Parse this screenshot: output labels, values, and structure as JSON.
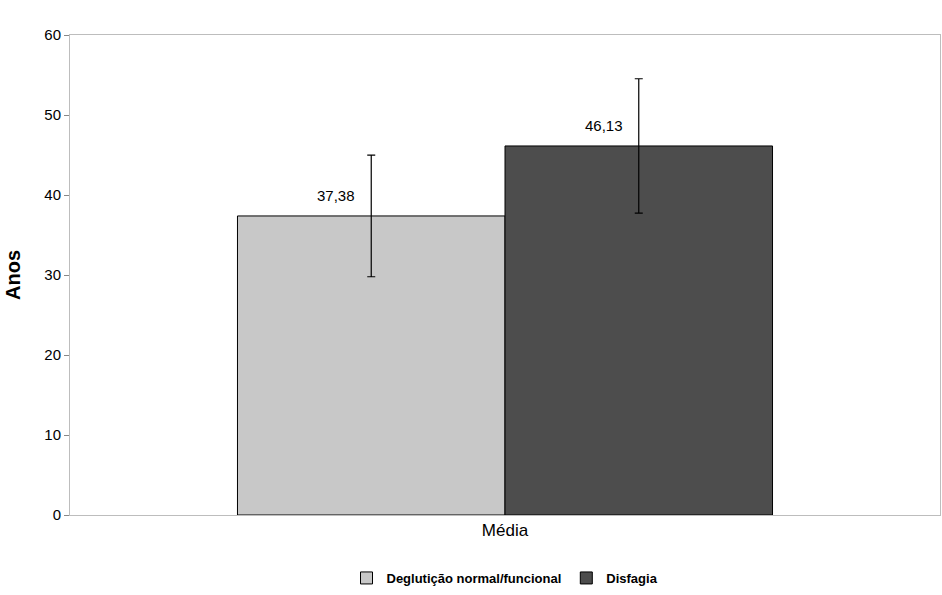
{
  "chart_data": {
    "type": "bar",
    "y_label": "Anos",
    "categories": [
      "Média"
    ],
    "series": [
      {
        "name": "Deglutição normal/funcional",
        "color": "#c8c8c8",
        "values": [
          37.38
        ],
        "value_labels": [
          "37,38"
        ],
        "errors": [
          7.6
        ]
      },
      {
        "name": "Disfagia",
        "color": "#4d4d4d",
        "values": [
          46.13
        ],
        "value_labels": [
          "46,13"
        ],
        "errors": [
          8.4
        ]
      }
    ],
    "ylim": [
      0,
      60
    ],
    "yticks": [
      0,
      10,
      20,
      30,
      40,
      50,
      60
    ],
    "grid": false,
    "legend": "bottom",
    "data_labels": true
  }
}
